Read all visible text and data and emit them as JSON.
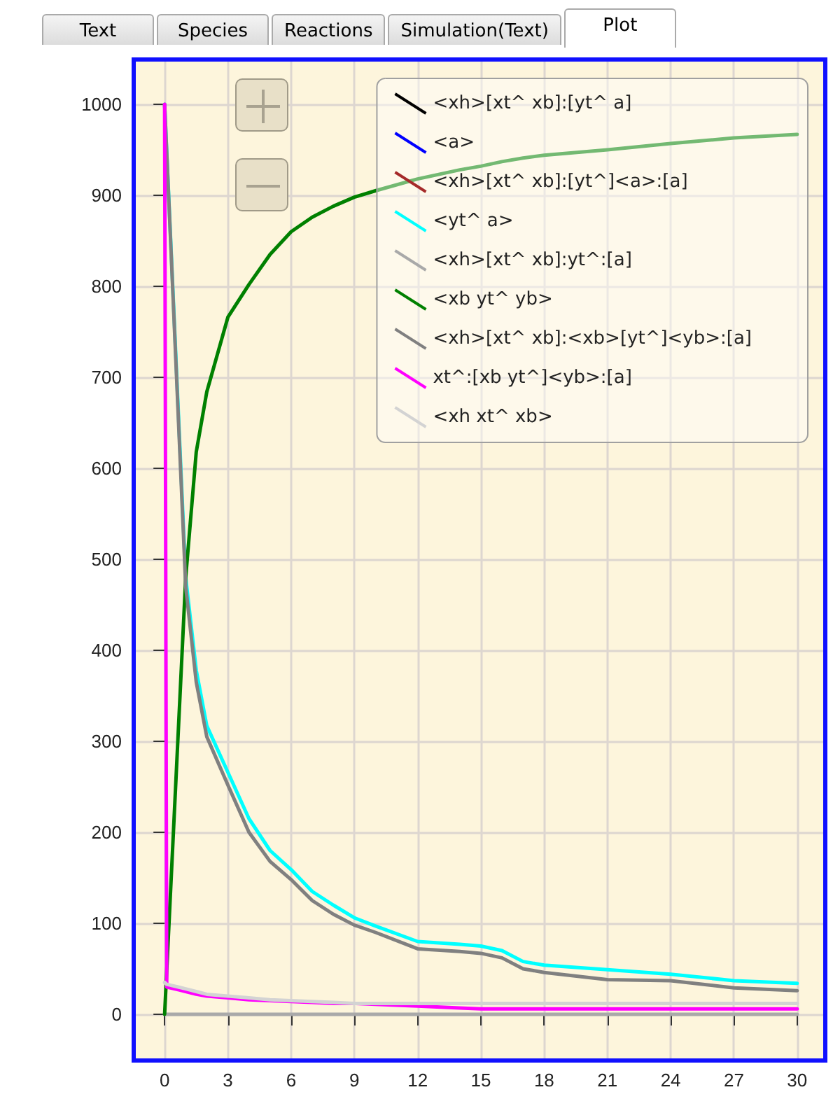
{
  "chart_data": {
    "type": "line",
    "annotations": [
      "Text",
      "Species",
      "Reactions",
      "Simulation(Text)",
      "Plot"
    ],
    "x": [
      0,
      0.1,
      1,
      1.5,
      2,
      3,
      4,
      5,
      6,
      7,
      8,
      9,
      10,
      12,
      14,
      15,
      16,
      17,
      18,
      21,
      24,
      27,
      30
    ],
    "xlim": [
      -1.5,
      31.3
    ],
    "xticks": [
      0,
      3,
      6,
      9,
      12,
      15,
      18,
      21,
      24,
      27,
      30
    ],
    "ylim": [
      -50,
      1050
    ],
    "yticks": [
      0,
      100,
      200,
      300,
      400,
      500,
      600,
      700,
      800,
      900,
      1000
    ],
    "grid": true,
    "legend": "top right",
    "marker": "none",
    "line_style": "solid",
    "series": [
      {
        "name": "<xh>[xt^ xb]:[yt^ a]",
        "color": "#000000",
        "values": [
          null,
          null,
          null,
          null,
          null,
          null,
          null,
          null,
          null,
          null,
          null,
          null,
          null,
          null,
          null,
          null,
          null,
          null,
          null,
          null,
          null,
          null,
          null
        ]
      },
      {
        "name": "<a>",
        "color": "#0000ff",
        "values": [
          null,
          null,
          null,
          null,
          null,
          null,
          null,
          null,
          null,
          null,
          null,
          null,
          null,
          null,
          null,
          null,
          null,
          null,
          null,
          null,
          null,
          null,
          null
        ]
      },
      {
        "name": "<xh>[xt^ xb]:[yt^]<a>:[a]",
        "color": "#a52a2a",
        "values": [
          null,
          null,
          null,
          null,
          null,
          null,
          null,
          null,
          null,
          null,
          null,
          null,
          null,
          null,
          null,
          null,
          null,
          null,
          null,
          null,
          null,
          null,
          null
        ]
      },
      {
        "name": "<yt^ a>",
        "color": "#00ffff",
        "values": [
          1000,
          948,
          480,
          378,
          317,
          266,
          215,
          180,
          159,
          135,
          120,
          106,
          97,
          80,
          77,
          75,
          70,
          58,
          54,
          49,
          44,
          37,
          34
        ]
      },
      {
        "name": "<xh>[xt^ xb]:yt^:[a]",
        "color": "#a9a9a9",
        "values": [
          0,
          0,
          0,
          0,
          0,
          0,
          0,
          0,
          0,
          0,
          0,
          0,
          0,
          0,
          0,
          0,
          0,
          0,
          0,
          0,
          0,
          0,
          0
        ]
      },
      {
        "name": "<xb yt^ yb>",
        "color": "#008000",
        "values": [
          0,
          48,
          480,
          618,
          684,
          766,
          802,
          835,
          860,
          876,
          888,
          898,
          905,
          918,
          928,
          932,
          937,
          941,
          944,
          950,
          957,
          963,
          967
        ]
      },
      {
        "name": "<xh>[xt^ xb]:<xb>[yt^]<yb>:[a]",
        "color": "#808080",
        "values": [
          1000,
          947,
          470,
          365,
          305,
          252,
          200,
          168,
          148,
          125,
          110,
          98,
          90,
          72,
          69,
          67,
          62,
          50,
          46,
          38,
          37,
          29,
          26
        ]
      },
      {
        "name": "xt^:[xb yt^]<yb>:[a]",
        "color": "#ff00ff",
        "values": [
          1000,
          30,
          25,
          22,
          20,
          18,
          16,
          15,
          14,
          13,
          12,
          12,
          11,
          9,
          7,
          6,
          6,
          6,
          6,
          6,
          6,
          6,
          6
        ]
      },
      {
        "name": "<xh xt^ xb>",
        "color": "#d3d3d3",
        "values": [
          35,
          33,
          28,
          25,
          22,
          20,
          18,
          16,
          15,
          14,
          13,
          12,
          12,
          12,
          12,
          12,
          12,
          12,
          12,
          12,
          12,
          12,
          12
        ]
      }
    ]
  }
}
